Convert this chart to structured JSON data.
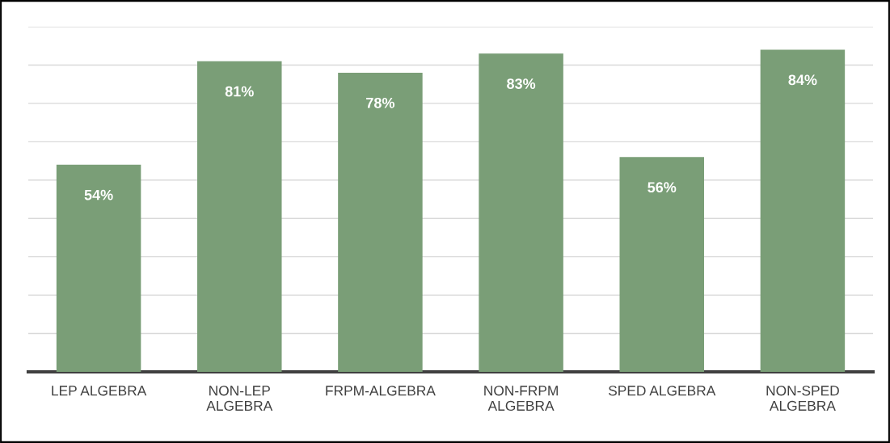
{
  "chart_data": {
    "type": "bar",
    "categories": [
      "LEP ALGEBRA",
      "NON-LEP ALGEBRA",
      "FRPM-ALGEBRA",
      "NON-FRPM ALGEBRA",
      "SPED ALGEBRA",
      "NON-SPED ALGEBRA"
    ],
    "values": [
      54,
      81,
      78,
      83,
      56,
      84
    ],
    "value_labels": [
      "54%",
      "81%",
      "78%",
      "83%",
      "56%",
      "84%"
    ],
    "color": "#7a9e77",
    "ylim": [
      0,
      90
    ],
    "yticks": [
      {
        "value": 0,
        "label": null
      },
      {
        "value": 10,
        "label": null
      },
      {
        "value": 20,
        "label": null
      },
      {
        "value": 30,
        "label": null
      },
      {
        "value": 40,
        "label": null
      },
      {
        "value": 50,
        "label": null
      },
      {
        "value": 60,
        "label": null
      },
      {
        "value": 70,
        "label": null
      },
      {
        "value": 80,
        "label": null
      },
      {
        "value": 90,
        "label": null
      }
    ],
    "tick_labels": "x",
    "grid": "y"
  }
}
